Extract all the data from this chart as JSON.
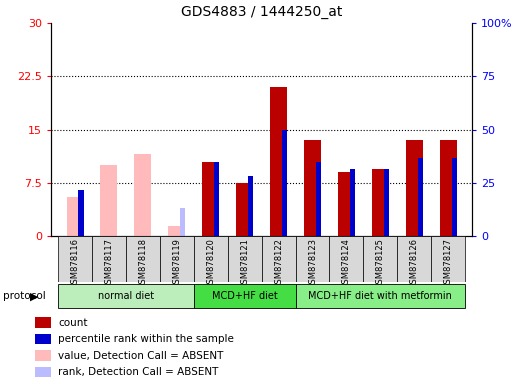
{
  "title": "GDS4883 / 1444250_at",
  "samples": [
    "GSM878116",
    "GSM878117",
    "GSM878118",
    "GSM878119",
    "GSM878120",
    "GSM878121",
    "GSM878122",
    "GSM878123",
    "GSM878124",
    "GSM878125",
    "GSM878126",
    "GSM878127"
  ],
  "count_values": [
    null,
    null,
    null,
    null,
    10.5,
    7.5,
    21.0,
    13.5,
    9.0,
    9.5,
    13.5,
    13.5
  ],
  "percentile_left": [
    6.5,
    null,
    null,
    null,
    10.5,
    8.5,
    15.0,
    10.5,
    9.5,
    9.5,
    11.0,
    11.0
  ],
  "absent_value_values": [
    5.5,
    10.0,
    11.5,
    1.5,
    null,
    null,
    null,
    null,
    null,
    null,
    null,
    null
  ],
  "absent_rank_values": [
    null,
    null,
    null,
    4.0,
    null,
    null,
    null,
    null,
    null,
    null,
    null,
    null
  ],
  "protocols": [
    {
      "label": "normal diet",
      "color": "#aaeaaa",
      "start": 0,
      "end": 4
    },
    {
      "label": "MCD+HF diet",
      "color": "#44dd44",
      "start": 4,
      "end": 7
    },
    {
      "label": "MCD+HF diet with metformin",
      "color": "#77ee77",
      "start": 7,
      "end": 12
    }
  ],
  "ylim_left": [
    0,
    30
  ],
  "ylim_right": [
    0,
    100
  ],
  "yticks_left": [
    0,
    7.5,
    15,
    22.5,
    30
  ],
  "yticks_right": [
    0,
    25,
    50,
    75,
    100
  ],
  "count_color": "#bb0000",
  "percentile_color": "#0000cc",
  "absent_value_color": "#ffbbbb",
  "absent_rank_color": "#bbbbff",
  "plot_bg": "#ffffff",
  "xtick_bg": "#d8d8d8",
  "bar_width": 0.5,
  "pct_bar_width": 0.15
}
